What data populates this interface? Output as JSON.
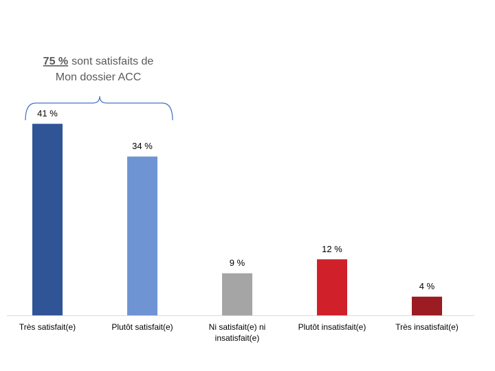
{
  "chart_data": {
    "type": "bar",
    "annotation": {
      "highlight": "75 %",
      "lines": [
        "sont satisfaits de",
        "Mon dossier ACC"
      ]
    },
    "categories": [
      "Très satisfait(e)",
      "Plutôt satisfait(e)",
      "Ni satisfait(e) ni insatisfait(e)",
      "Plutôt insatisfait(e)",
      "Très insatisfait(e)"
    ],
    "values": [
      41,
      34,
      9,
      12,
      4
    ],
    "value_labels": [
      "41 %",
      "34 %",
      "9 %",
      "12 %",
      "4 %"
    ],
    "colors": [
      "#2f5597",
      "#6f94d4",
      "#a5a5a5",
      "#d0202a",
      "#9b1c23"
    ]
  }
}
